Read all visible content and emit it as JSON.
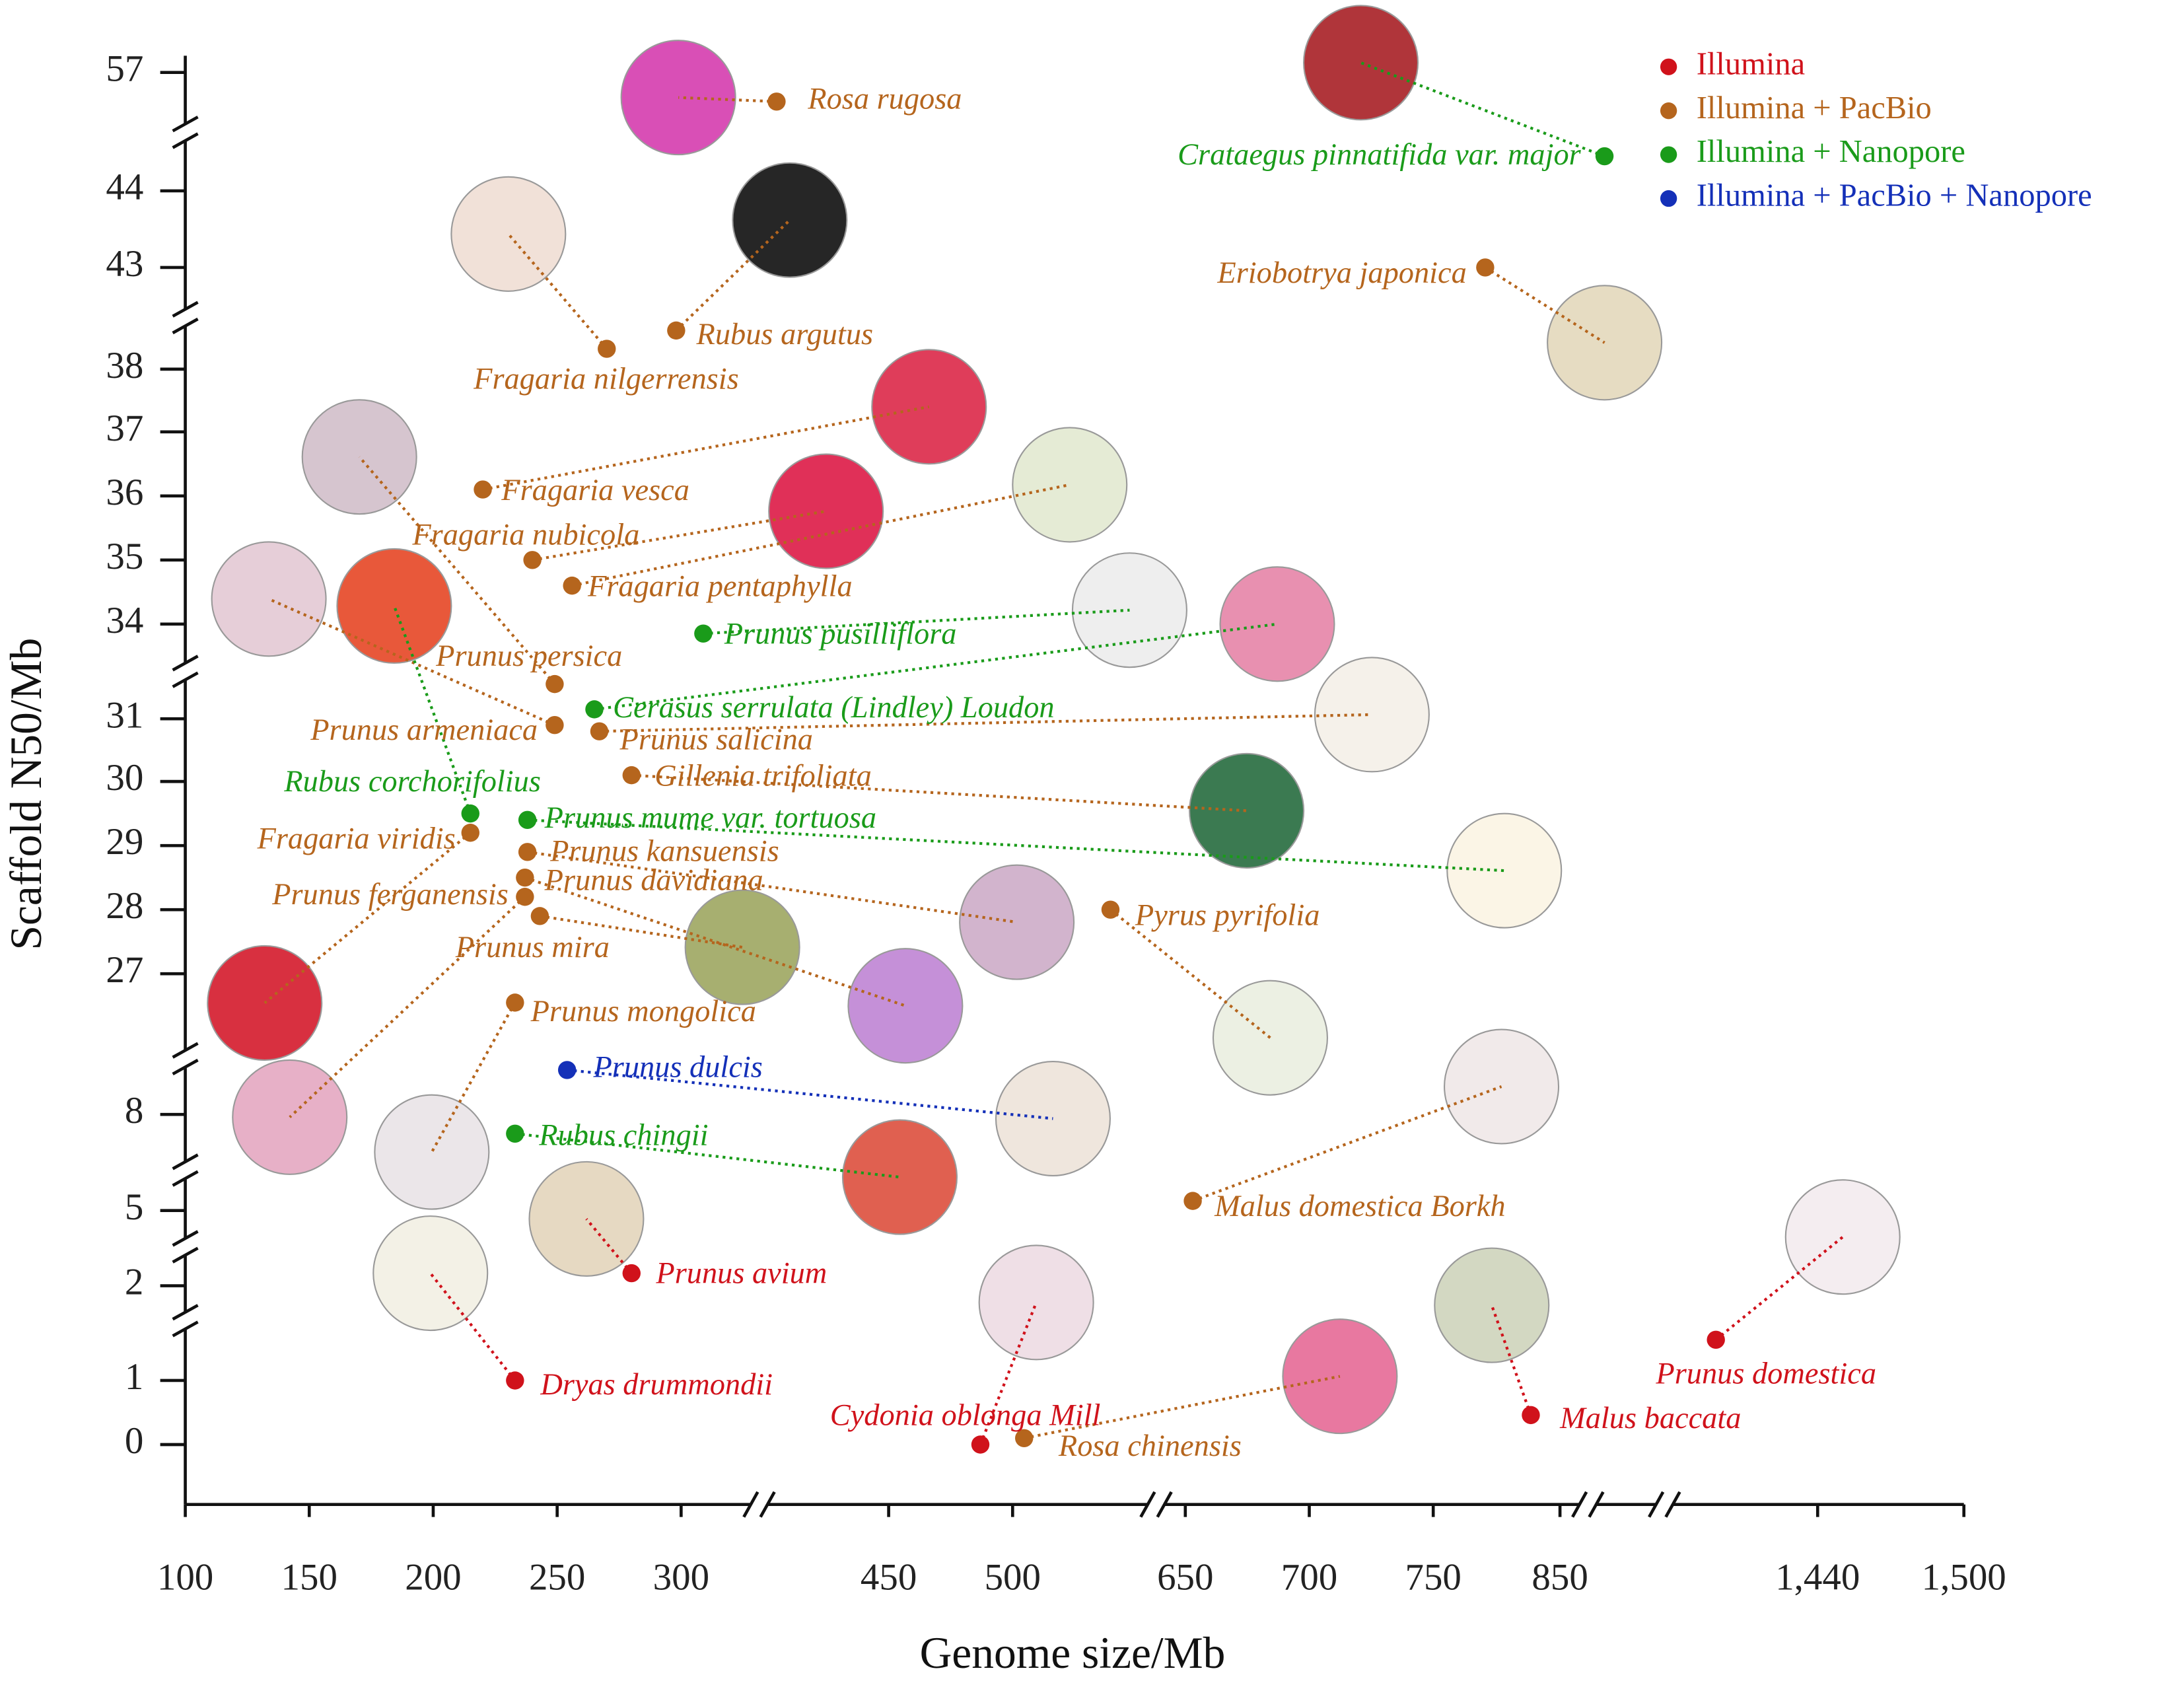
{
  "chart_data": {
    "type": "scatter",
    "x_label": "Genome size/Mb",
    "y_label": "Scaffold N50/Mb",
    "xticks": [
      100,
      150,
      200,
      250,
      300,
      450,
      500,
      650,
      700,
      750,
      850,
      {
        "value": 1440,
        "label": "1,440"
      },
      {
        "value": 1500,
        "label": "1,500"
      }
    ],
    "yticks": [
      0,
      1,
      2,
      5,
      8,
      27,
      28,
      29,
      30,
      31,
      34,
      35,
      36,
      37,
      38,
      43,
      44,
      57
    ],
    "xlim": [
      100,
      1500
    ],
    "ylim": [
      0,
      57
    ],
    "series": [
      {
        "name": "Illumina",
        "color": "#d0121b",
        "labels": [
          "Prunus avium",
          "Dryas drummondii",
          "Prunus domestica",
          "Cydonia oblonga Mill",
          "Malus baccata"
        ],
        "x": [
          280,
          233,
          1207,
          487,
          827
        ],
        "values": [
          2.5,
          1.0,
          1.43,
          0,
          0.46
        ]
      },
      {
        "name": "Illumina + PacBio",
        "color": "#b5651d",
        "labels": [
          "Rosa rugosa",
          "Eriobotrya japonica",
          "Rubus argutus",
          "Fragaria nilgerrensis",
          "Fragaria vesca",
          "Fragaria nubicola",
          "Fragaria pentaphylla",
          "Prunus persica",
          "Prunus armeniaca",
          "Prunus salicina",
          "Gillenia trifoliata",
          "Fragaria viridis",
          "Prunus kansuensis",
          "Prunus davidiana",
          "Prunus ferganensis",
          "Prunus mira",
          "Pyrus pyrifolia",
          "Prunus mongolica",
          "Malus domestica Borkh",
          "Rosa chinensis"
        ],
        "x": [
          369,
          791,
          298,
          270,
          220,
          240,
          256,
          249,
          249,
          267,
          280,
          215,
          238,
          237,
          237,
          243,
          585,
          233,
          653,
          510
        ],
        "values": [
          53.8,
          43,
          39.9,
          39.0,
          36.1,
          35.0,
          34.6,
          32.1,
          30.9,
          30.8,
          30.1,
          29.2,
          28.9,
          28.5,
          28.2,
          27.9,
          28.0,
          23.1,
          5.3,
          0.1
        ]
      },
      {
        "name": "Illumina + Nanopore",
        "color": "#1a9b1a",
        "labels": [
          "Crataegus pinnatifida var. major",
          "Prunus pusilliflora",
          "Cerasus serrulata (Lindley) Loudon",
          "Rubus corchorifolius",
          "Prunus mume var. tortuosa",
          "Rubus chingii"
        ],
        "x": [
          952,
          316,
          265,
          215,
          238,
          233
        ],
        "values": [
          47.8,
          33.7,
          31.3,
          29.5,
          29.4,
          7.4
        ]
      },
      {
        "name": "Illumina + PacBio + Nanopore",
        "color": "#1430b8",
        "labels": [
          "Prunus dulcis"
        ],
        "x": [
          254
        ],
        "values": [
          14.0
        ]
      }
    ]
  }
}
